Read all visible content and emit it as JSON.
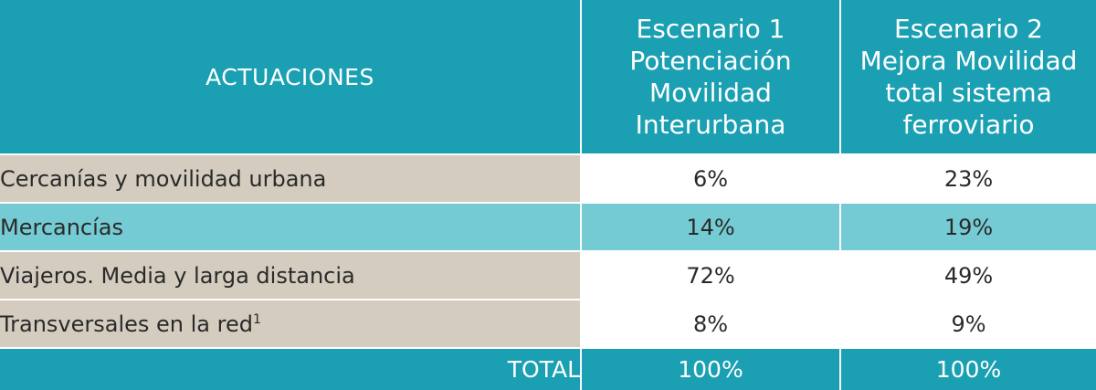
{
  "header": {
    "actuaciones": "ACTUACIONES",
    "scenario1": [
      "Escenario 1",
      "Potenciación",
      "Movilidad",
      "Interurbana"
    ],
    "scenario2": [
      "Escenario 2",
      "Mejora Movilidad",
      "total sistema",
      "ferroviario"
    ]
  },
  "rows": [
    {
      "label": "Cercanías y movilidad urbana",
      "s1": "6%",
      "s2": "23%"
    },
    {
      "label": "Mercancías",
      "s1": "14%",
      "s2": "19%"
    },
    {
      "label": "Viajeros. Media y larga distancia",
      "s1": "72%",
      "s2": "49%"
    },
    {
      "label": "Transversales en la red",
      "sup": "1",
      "s1": "8%",
      "s2": "9%"
    }
  ],
  "total": {
    "label": "TOTAL",
    "s1": "100%",
    "s2": "100%"
  },
  "colors": {
    "teal": "#1aa0b2",
    "light_teal": "#75cbd3",
    "beige": "#d4ccbf",
    "white": "#ffffff"
  }
}
